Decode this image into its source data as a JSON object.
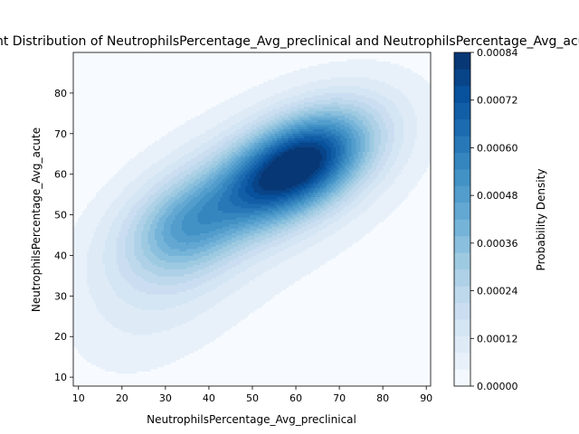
{
  "chart_data": {
    "type": "heatmap",
    "title": "Joint Distribution of NeutrophilsPercentage_Avg_preclinical and NeutrophilsPercentage_Avg_acute",
    "xlabel": "NeutrophilsPercentage_Avg_preclinical",
    "ylabel": "NeutrophilsPercentage_Avg_acute",
    "xlim": [
      8.8,
      91.0
    ],
    "ylim": [
      7.8,
      90.0
    ],
    "xticks": [
      "10",
      "20",
      "30",
      "40",
      "50",
      "60",
      "70",
      "80",
      "90"
    ],
    "yticks": [
      "10",
      "20",
      "30",
      "40",
      "50",
      "60",
      "70",
      "80"
    ],
    "grid": false,
    "density_peaks": [
      {
        "x": 61,
        "y": 63,
        "density": 0.00084
      },
      {
        "x": 36,
        "y": 49,
        "density": 0.00036
      },
      {
        "x": 52,
        "y": 56,
        "density": 0.00044
      }
    ],
    "colorbar": {
      "label": "Probability Density",
      "colormap": "Blues",
      "range": [
        0.0,
        0.00084
      ],
      "levels": 20,
      "ticks": [
        "0.00000",
        "0.00012",
        "0.00024",
        "0.00036",
        "0.00048",
        "0.00060",
        "0.00072",
        "0.00084"
      ]
    }
  }
}
